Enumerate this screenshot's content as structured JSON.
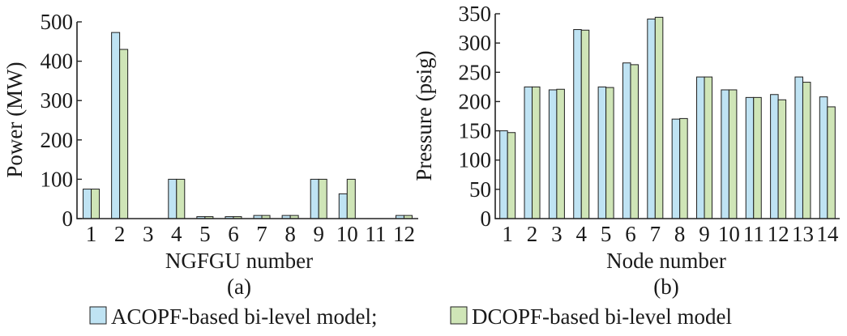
{
  "colors": {
    "acopf": "#bfe3f3",
    "dcopf": "#cfe5b7",
    "axis": "#222222"
  },
  "legend": {
    "items": [
      {
        "label": "ACOPF-based bi-level model;",
        "color": "#bfe3f3"
      },
      {
        "label": "DCOPF-based bi-level model",
        "color": "#cfe5b7"
      }
    ]
  },
  "chart_data": [
    {
      "type": "bar",
      "panel_label": "(a)",
      "xlabel": "NGFGU number",
      "ylabel": "Power (MW)",
      "ylim": [
        0,
        500
      ],
      "yticks": [
        0,
        100,
        200,
        300,
        400,
        500
      ],
      "categories": [
        "1",
        "2",
        "3",
        "4",
        "5",
        "6",
        "7",
        "8",
        "9",
        "10",
        "11",
        "12"
      ],
      "series": [
        {
          "name": "ACOPF-based bi-level model",
          "values": [
            75,
            473,
            0,
            100,
            5,
            5,
            8,
            8,
            100,
            63,
            0,
            8
          ]
        },
        {
          "name": "DCOPF-based bi-level model",
          "values": [
            75,
            430,
            0,
            100,
            5,
            5,
            8,
            8,
            100,
            100,
            0,
            8
          ]
        }
      ]
    },
    {
      "type": "bar",
      "panel_label": "(b)",
      "xlabel": "Node number",
      "ylabel": "Pressure (psig)",
      "ylim": [
        0,
        350
      ],
      "yticks": [
        0,
        50,
        100,
        150,
        200,
        250,
        300,
        350
      ],
      "categories": [
        "1",
        "2",
        "3",
        "4",
        "5",
        "6",
        "7",
        "8",
        "9",
        "10",
        "11",
        "12",
        "13",
        "14"
      ],
      "series": [
        {
          "name": "ACOPF-based bi-level model",
          "values": [
            150,
            225,
            220,
            323,
            225,
            266,
            341,
            170,
            242,
            220,
            207,
            212,
            242,
            208
          ]
        },
        {
          "name": "DCOPF-based bi-level model",
          "values": [
            147,
            225,
            221,
            322,
            224,
            263,
            344,
            171,
            242,
            220,
            207,
            203,
            233,
            191
          ]
        }
      ]
    }
  ]
}
